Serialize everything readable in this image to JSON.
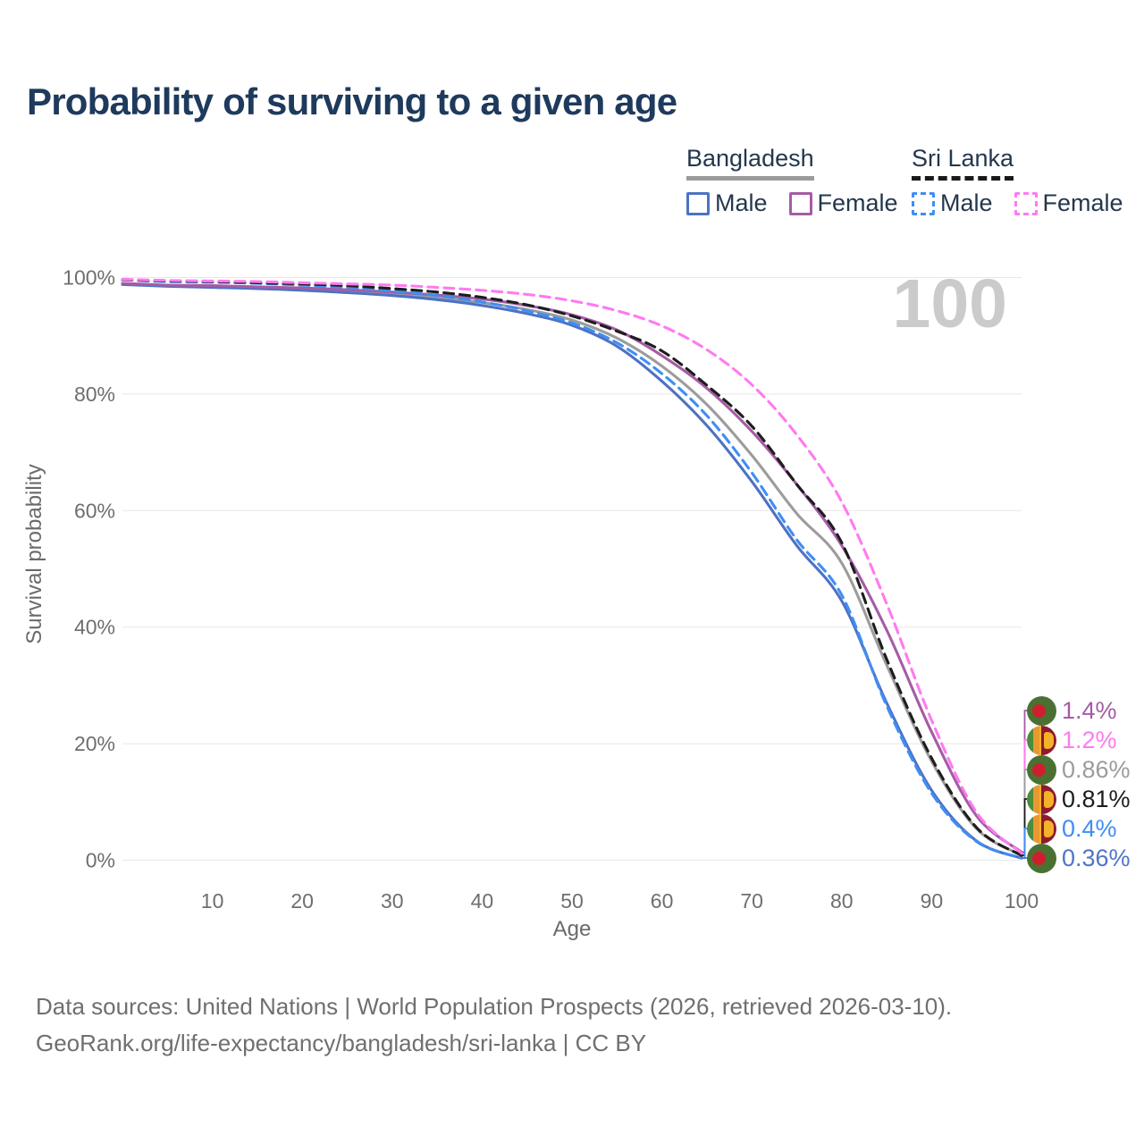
{
  "title": "Probability of surviving to a given age",
  "watermark_age": "100",
  "legend": {
    "groups": [
      {
        "name": "Bangladesh",
        "line_style": "solid",
        "underline_color": "#9b9b9b",
        "items": [
          {
            "label": "Male",
            "color": "#4d72c4"
          },
          {
            "label": "Female",
            "color": "#a55ca5"
          }
        ]
      },
      {
        "name": "Sri Lanka",
        "line_style": "dashed",
        "underline_color": "#1a1a1a",
        "items": [
          {
            "label": "Male",
            "color": "#3f8ef5"
          },
          {
            "label": "Female",
            "color": "#ff7af0"
          }
        ]
      }
    ]
  },
  "chart_data": {
    "type": "line",
    "title": "Probability of surviving to a given age",
    "xlabel": "Age",
    "ylabel": "Survival probability",
    "xlim": [
      0,
      100
    ],
    "ylim": [
      0,
      100
    ],
    "x_ticks": [
      10,
      20,
      30,
      40,
      50,
      60,
      70,
      80,
      90,
      100
    ],
    "y_ticks": [
      0,
      20,
      40,
      60,
      80,
      100
    ],
    "y_tick_suffix": "%",
    "grid": "horizontal",
    "legend_position": "top-right",
    "ages": [
      0,
      5,
      10,
      15,
      20,
      25,
      30,
      35,
      40,
      45,
      50,
      55,
      60,
      65,
      70,
      75,
      80,
      85,
      90,
      95,
      100
    ],
    "series": [
      {
        "name": "Bangladesh",
        "sex": "both",
        "color": "#9c9c9c",
        "dash": false,
        "end_label": "0.86%",
        "values": [
          98.9,
          98.6,
          98.5,
          98.3,
          98.0,
          97.6,
          97.2,
          96.6,
          95.7,
          94.5,
          92.7,
          89.6,
          84.8,
          78.2,
          69.5,
          59.5,
          51.0,
          33.5,
          17.0,
          5.4,
          0.86
        ]
      },
      {
        "name": "Bangladesh Male",
        "sex": "male",
        "color": "#4d72c4",
        "dash": false,
        "end_label": "0.36%",
        "values": [
          98.8,
          98.5,
          98.3,
          98.1,
          97.8,
          97.4,
          96.9,
          96.2,
          95.2,
          93.8,
          91.8,
          88.2,
          82.2,
          74.6,
          65.0,
          54.0,
          44.5,
          27.0,
          12.0,
          3.3,
          0.36
        ]
      },
      {
        "name": "Bangladesh Female",
        "sex": "female",
        "color": "#a55ca5",
        "dash": false,
        "end_label": "1.4%",
        "values": [
          99.0,
          98.7,
          98.6,
          98.4,
          98.2,
          97.9,
          97.5,
          97.0,
          96.3,
          95.2,
          93.6,
          91.0,
          86.6,
          81.0,
          73.6,
          64.5,
          54.0,
          39.5,
          22.0,
          7.6,
          1.4
        ]
      },
      {
        "name": "Sri Lanka Male",
        "sex": "male",
        "color": "#3f8ef5",
        "dash": true,
        "end_label": "0.4%",
        "values": [
          99.6,
          99.3,
          99.2,
          99.0,
          98.7,
          98.3,
          97.7,
          96.9,
          95.8,
          94.3,
          92.2,
          88.8,
          83.5,
          76.3,
          66.5,
          55.0,
          45.5,
          26.5,
          11.5,
          3.2,
          0.4
        ]
      },
      {
        "name": "Sri Lanka",
        "sex": "both",
        "color": "#1d1d1d",
        "dash": true,
        "end_label": "0.81%",
        "values": [
          99.65,
          99.4,
          99.3,
          99.1,
          98.9,
          98.6,
          98.1,
          97.5,
          96.6,
          95.3,
          93.4,
          90.8,
          87.4,
          81.5,
          74.5,
          64.5,
          54.5,
          34.5,
          17.5,
          5.6,
          0.81
        ]
      },
      {
        "name": "Sri Lanka Female",
        "sex": "female",
        "color": "#ff7af0",
        "dash": true,
        "end_label": "1.2%",
        "values": [
          99.7,
          99.5,
          99.4,
          99.3,
          99.1,
          98.9,
          98.7,
          98.3,
          97.8,
          97.1,
          96.0,
          94.3,
          91.7,
          87.6,
          81.6,
          73.0,
          61.5,
          44.0,
          24.0,
          8.2,
          1.2
        ]
      }
    ]
  },
  "end_labels": [
    {
      "text": "1.4%",
      "color": "#a55ca5",
      "flag": "bd",
      "series_index": 2
    },
    {
      "text": "1.2%",
      "color": "#ff7af0",
      "flag": "sl",
      "series_index": 5
    },
    {
      "text": "0.86%",
      "color": "#9c9c9c",
      "flag": "bd",
      "series_index": 0
    },
    {
      "text": "0.81%",
      "color": "#1d1d1d",
      "flag": "sl",
      "series_index": 4
    },
    {
      "text": "0.4%",
      "color": "#3f8ef5",
      "flag": "sl",
      "series_index": 3
    },
    {
      "text": "0.36%",
      "color": "#5074c8",
      "flag": "bd",
      "series_index": 1
    }
  ],
  "footer": {
    "line1": "Data sources: United Nations | World Population Prospects (2026, retrieved 2026-03-10).",
    "line2": "GeoRank.org/life-expectancy/bangladesh/sri-lanka | CC BY"
  }
}
